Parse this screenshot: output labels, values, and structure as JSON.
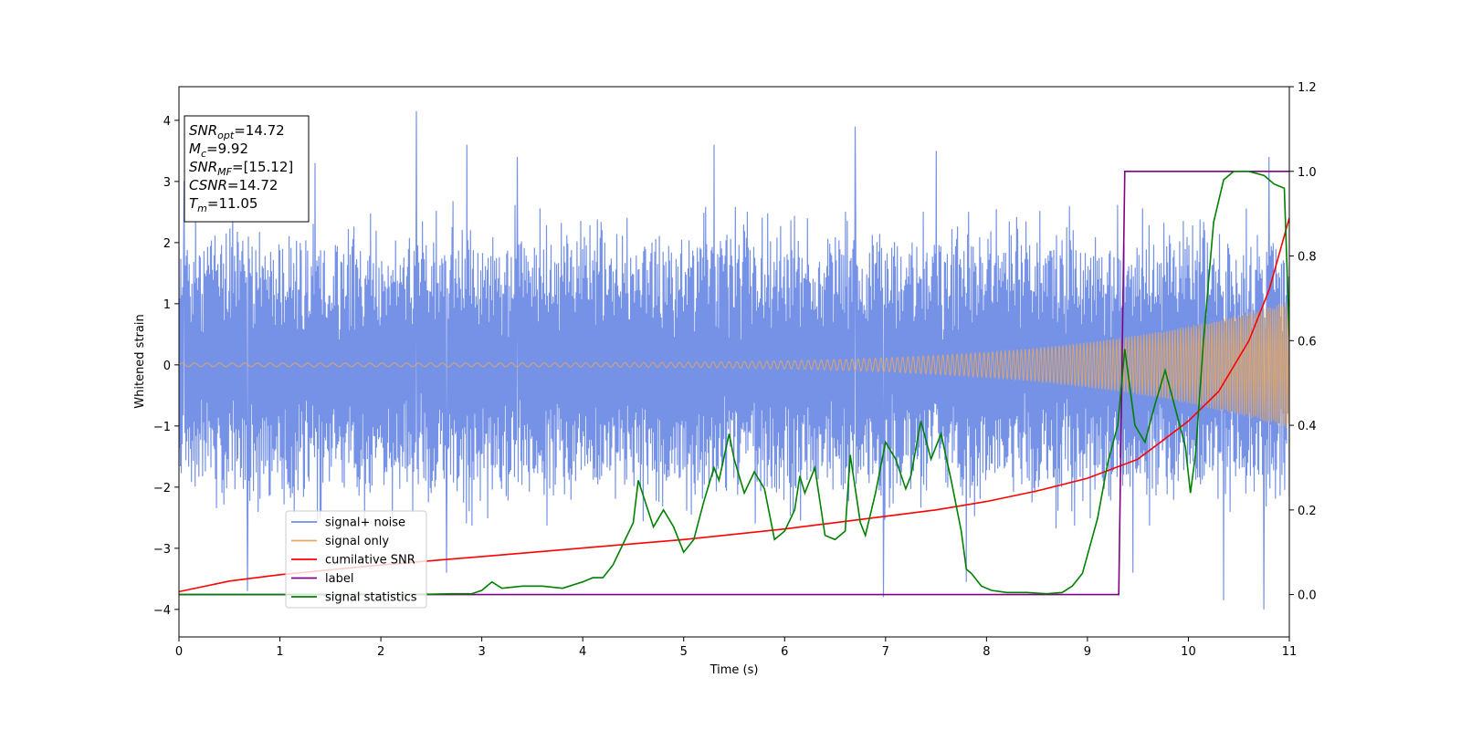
{
  "chart_data": {
    "type": "line",
    "xlabel": "Time (s)",
    "ylabel": "Whitened strain",
    "xlim": [
      0,
      11
    ],
    "ylim": [
      -4.45,
      4.55
    ],
    "ylim_right": [
      -0.1,
      1.2
    ],
    "x_ticks": [
      0,
      1,
      2,
      3,
      4,
      5,
      6,
      7,
      8,
      9,
      10,
      11
    ],
    "y_ticks": [
      -4,
      -3,
      -2,
      -1,
      0,
      1,
      2,
      3,
      4
    ],
    "y_ticks_right": [
      0.0,
      0.2,
      0.4,
      0.6,
      0.8,
      1.0,
      1.2
    ],
    "grid": false,
    "legend_position": "lower-left",
    "info_box": {
      "lines": [
        {
          "var": "SNR",
          "sub": "opt",
          "text": "=14.72"
        },
        {
          "var": "M",
          "sub": "c",
          "text": "=9.92"
        },
        {
          "var": "SNR",
          "sub": "MF",
          "text": "=[15.12]"
        },
        {
          "var": "CSNR",
          "sub": "",
          "text": "=14.72"
        },
        {
          "var": "T",
          "sub": "m",
          "text": "=11.05"
        }
      ]
    },
    "series": [
      {
        "name": "signal+ noise",
        "color": "#6f8ce6",
        "axis": "left",
        "kind": "noise",
        "duration_s": 11,
        "envelope_typical": 1.5,
        "peaks": [
          [
            0.05,
            3.0
          ],
          [
            0.68,
            -3.7
          ],
          [
            1.35,
            3.3
          ],
          [
            2.35,
            4.15
          ],
          [
            2.65,
            -3.4
          ],
          [
            2.85,
            3.6
          ],
          [
            3.35,
            3.4
          ],
          [
            5.3,
            3.6
          ],
          [
            6.7,
            3.9
          ],
          [
            6.98,
            -3.8
          ],
          [
            7.5,
            3.5
          ],
          [
            7.8,
            -3.55
          ],
          [
            9.45,
            -3.4
          ],
          [
            10.35,
            -3.85
          ],
          [
            10.75,
            -4.0
          ],
          [
            10.8,
            3.4
          ]
        ]
      },
      {
        "name": "signal only",
        "color": "#e8a860",
        "axis": "left",
        "kind": "chirp",
        "amplitude_start": 0.03,
        "amplitude_end": 1.05
      },
      {
        "name": "cumilative SNR",
        "color": "#ff0000",
        "axis": "right",
        "x": [
          0,
          0.5,
          1,
          2,
          3,
          4,
          5,
          6,
          6.5,
          7,
          7.5,
          8,
          8.5,
          9,
          9.5,
          10,
          10.3,
          10.6,
          10.8,
          11
        ],
        "y": [
          0.007,
          0.032,
          0.047,
          0.07,
          0.09,
          0.11,
          0.13,
          0.155,
          0.17,
          0.185,
          0.2,
          0.22,
          0.245,
          0.275,
          0.32,
          0.41,
          0.48,
          0.6,
          0.72,
          0.89
        ]
      },
      {
        "name": "label",
        "color": "#800080",
        "axis": "right",
        "x": [
          0,
          9.31,
          9.37,
          11
        ],
        "y": [
          0,
          0,
          1,
          1
        ]
      },
      {
        "name": "signal statistics",
        "color": "#008000",
        "axis": "right",
        "x": [
          0,
          0.5,
          1,
          1.5,
          2,
          2.5,
          2.7,
          2.9,
          3.0,
          3.1,
          3.2,
          3.4,
          3.6,
          3.8,
          4.0,
          4.1,
          4.2,
          4.3,
          4.4,
          4.5,
          4.55,
          4.7,
          4.8,
          4.9,
          5.0,
          5.1,
          5.2,
          5.3,
          5.35,
          5.45,
          5.5,
          5.6,
          5.7,
          5.8,
          5.9,
          6.0,
          6.1,
          6.15,
          6.2,
          6.3,
          6.4,
          6.5,
          6.6,
          6.65,
          6.75,
          6.8,
          6.9,
          7.0,
          7.1,
          7.2,
          7.25,
          7.35,
          7.45,
          7.55,
          7.65,
          7.75,
          7.8,
          7.85,
          7.95,
          8.05,
          8.2,
          8.4,
          8.6,
          8.75,
          8.85,
          8.95,
          9.1,
          9.2,
          9.3,
          9.37,
          9.47,
          9.57,
          9.67,
          9.77,
          9.87,
          9.97,
          10.02,
          10.07,
          10.15,
          10.25,
          10.35,
          10.45,
          10.6,
          10.75,
          10.85,
          10.95,
          11
        ],
        "y": [
          0.0,
          0.0,
          0.0,
          0.0,
          0.001,
          0.001,
          0.002,
          0.002,
          0.01,
          0.03,
          0.015,
          0.02,
          0.02,
          0.015,
          0.03,
          0.04,
          0.04,
          0.07,
          0.12,
          0.17,
          0.27,
          0.16,
          0.2,
          0.16,
          0.1,
          0.13,
          0.22,
          0.3,
          0.27,
          0.38,
          0.32,
          0.24,
          0.29,
          0.25,
          0.13,
          0.15,
          0.2,
          0.28,
          0.24,
          0.3,
          0.14,
          0.13,
          0.15,
          0.33,
          0.17,
          0.14,
          0.24,
          0.36,
          0.32,
          0.25,
          0.28,
          0.41,
          0.32,
          0.38,
          0.27,
          0.15,
          0.06,
          0.05,
          0.02,
          0.01,
          0.005,
          0.005,
          0.002,
          0.005,
          0.02,
          0.05,
          0.18,
          0.31,
          0.4,
          0.58,
          0.4,
          0.36,
          0.45,
          0.53,
          0.44,
          0.35,
          0.24,
          0.33,
          0.6,
          0.88,
          0.98,
          1.0,
          1.0,
          0.99,
          0.97,
          0.96,
          0.61
        ]
      }
    ]
  }
}
